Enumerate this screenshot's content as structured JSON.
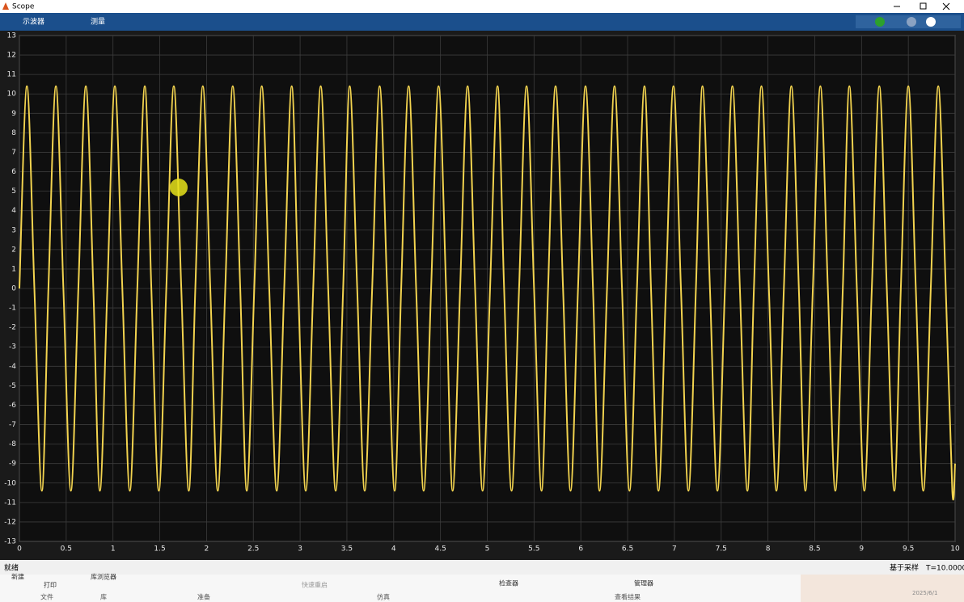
{
  "window": {
    "title": "Scope"
  },
  "toolbar": {
    "tabs": [
      "示波器",
      "测量"
    ]
  },
  "chart_data": {
    "type": "line",
    "x": [
      0,
      0.08,
      0.16,
      0.24,
      0.31,
      0.39,
      0.47,
      0.55,
      0.63,
      0.71,
      0.79,
      0.86,
      0.94,
      1.02,
      1.1,
      1.18,
      1.26,
      1.34,
      1.41,
      1.49,
      1.57,
      1.65,
      1.73,
      1.81,
      1.88,
      1.96,
      2.04,
      2.12,
      2.2,
      2.28,
      2.36,
      2.43,
      2.51,
      2.59,
      2.67,
      2.75,
      2.83,
      2.91,
      2.98,
      3.06,
      3.14,
      3.22,
      3.3,
      3.38,
      3.46,
      3.53,
      3.61,
      3.69,
      3.77,
      3.85,
      3.93,
      4.01,
      4.08,
      4.16,
      4.24,
      4.32,
      4.4,
      4.48,
      4.56,
      4.63,
      4.71,
      4.79,
      4.87,
      4.95,
      5.03,
      5.11,
      5.18,
      5.26,
      5.34,
      5.42,
      5.5,
      5.58,
      5.65,
      5.73,
      5.81,
      5.89,
      5.97,
      6.05,
      6.13,
      6.2,
      6.28,
      6.36,
      6.44,
      6.52,
      6.6,
      6.68,
      6.75,
      6.83,
      6.91,
      6.99,
      7.07,
      7.15,
      7.23,
      7.3,
      7.38,
      7.46,
      7.54,
      7.62,
      7.7,
      7.78,
      7.85,
      7.93,
      8.01,
      8.09,
      8.17,
      8.25,
      8.33,
      8.4,
      8.48,
      8.56,
      8.64,
      8.72,
      8.8,
      8.87,
      8.95,
      9.03,
      9.11,
      9.19,
      9.27,
      9.35,
      9.42,
      9.5,
      9.58,
      9.66,
      9.74,
      9.82,
      9.9,
      9.97,
      10
    ],
    "values": [
      0,
      10.4,
      0,
      -10.4,
      0,
      10.4,
      0,
      -10.4,
      0,
      10.4,
      0,
      -10.4,
      0,
      10.4,
      0,
      -10.4,
      0,
      10.4,
      0,
      -10.4,
      0,
      10.4,
      0,
      -10.4,
      0,
      10.4,
      0,
      -10.4,
      0,
      10.4,
      0,
      -10.4,
      0,
      10.4,
      0,
      -10.4,
      0,
      10.4,
      0,
      -10.4,
      0,
      10.4,
      0,
      -10.4,
      0,
      10.4,
      0,
      -10.4,
      0,
      10.4,
      0,
      -10.4,
      0,
      10.4,
      0,
      -10.4,
      0,
      10.4,
      0,
      -10.4,
      0,
      10.4,
      0,
      -10.4,
      0,
      10.4,
      0,
      -10.4,
      0,
      10.4,
      0,
      -10.4,
      0,
      10.4,
      0,
      -10.4,
      0,
      10.4,
      0,
      -10.4,
      0,
      10.4,
      0,
      -10.4,
      0,
      10.4,
      0,
      -10.4,
      0,
      10.4,
      0,
      -10.4,
      0,
      10.4,
      0,
      -10.4,
      0,
      10.4,
      0,
      -10.4,
      0,
      10.4,
      0,
      -10.4,
      0,
      10.4,
      0,
      -10.4,
      0,
      10.4,
      0,
      -10.4,
      0,
      10.4,
      0,
      -10.4,
      0,
      10.4,
      0,
      -10.4,
      0,
      10.4,
      0,
      -10.4,
      0,
      10.4,
      0,
      -10.4,
      -9
    ],
    "color": "#f2d34f",
    "xlim": [
      0,
      10
    ],
    "ylim": [
      -13,
      13
    ],
    "xticks": [
      0,
      0.5,
      1,
      1.5,
      2,
      2.5,
      3,
      3.5,
      4,
      4.5,
      5,
      5.5,
      6,
      6.5,
      7,
      7.5,
      8,
      8.5,
      9,
      9.5,
      10
    ],
    "yticks": [
      -13,
      -12,
      -11,
      -10,
      -9,
      -8,
      -7,
      -6,
      -5,
      -4,
      -3,
      -2,
      -1,
      0,
      1,
      2,
      3,
      4,
      5,
      6,
      7,
      8,
      9,
      10,
      11,
      12,
      13
    ],
    "grid": true
  },
  "status": {
    "state": "就绪",
    "mode": "基于采样",
    "time": "T=10.0000"
  },
  "ribbon": {
    "items": [
      "新建",
      "打印",
      "库浏览器",
      "快速重启",
      "检查器",
      "管理器"
    ],
    "groups": [
      "文件",
      "库",
      "准备",
      "仿真",
      "查看结果"
    ],
    "date": "2025/6/1"
  }
}
